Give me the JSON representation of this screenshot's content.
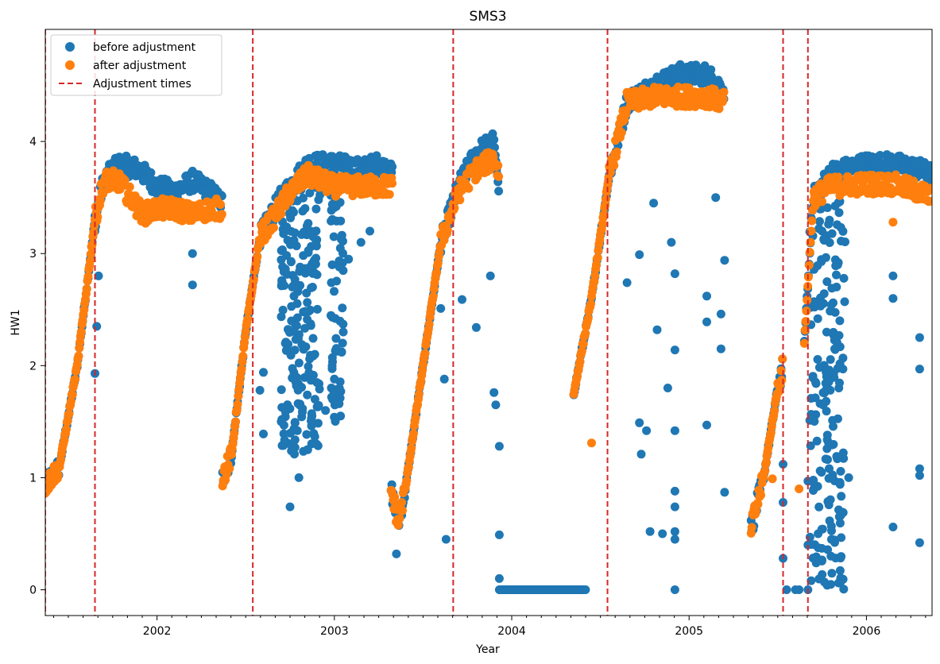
{
  "chart_data": {
    "type": "scatter",
    "title": "SMS3",
    "xlabel": "Year",
    "ylabel": "HW1",
    "xlim": [
      2001.37,
      2006.37
    ],
    "ylim": [
      -0.23,
      5.0
    ],
    "x_ticks": [
      2002,
      2003,
      2004,
      2005,
      2006
    ],
    "y_ticks": [
      0,
      1,
      2,
      3,
      4
    ],
    "legend": {
      "position": "upper-left"
    },
    "grid": false,
    "series": [
      {
        "name": "before adjustment",
        "type": "scatter",
        "color": "#1f77b4",
        "segments": [
          [
            [
              2001.37,
              0.93
            ],
            [
              2001.45,
              1.1
            ],
            [
              2001.55,
              2.0
            ],
            [
              2001.65,
              3.3
            ],
            [
              2001.7,
              3.65
            ],
            [
              2001.78,
              3.8
            ],
            [
              2001.9,
              3.75
            ],
            [
              2002.0,
              3.6
            ],
            [
              2002.1,
              3.55
            ],
            [
              2002.2,
              3.65
            ],
            [
              2002.3,
              3.55
            ],
            [
              2002.37,
              3.45
            ]
          ],
          [
            [
              2002.37,
              1.0
            ],
            [
              2002.42,
              1.2
            ],
            [
              2002.5,
              2.3
            ],
            [
              2002.58,
              3.15
            ],
            [
              2002.7,
              3.5
            ],
            [
              2002.85,
              3.8
            ],
            [
              2003.0,
              3.8
            ],
            [
              2003.15,
              3.75
            ],
            [
              2003.25,
              3.8
            ],
            [
              2003.33,
              3.7
            ]
          ],
          [
            [
              2003.32,
              0.9
            ],
            [
              2003.36,
              0.6
            ],
            [
              2003.4,
              0.9
            ],
            [
              2003.5,
              2.0
            ],
            [
              2003.6,
              3.1
            ],
            [
              2003.7,
              3.6
            ],
            [
              2003.8,
              3.9
            ],
            [
              2003.9,
              4.0
            ],
            [
              2003.93,
              3.5
            ]
          ],
          [
            [
              2004.35,
              1.75
            ],
            [
              2004.45,
              2.6
            ],
            [
              2004.55,
              3.7
            ],
            [
              2004.65,
              4.35
            ],
            [
              2004.8,
              4.5
            ],
            [
              2004.95,
              4.6
            ],
            [
              2005.1,
              4.6
            ],
            [
              2005.2,
              4.45
            ]
          ],
          [
            [
              2005.35,
              0.55
            ],
            [
              2005.42,
              1.0
            ],
            [
              2005.5,
              1.8
            ],
            [
              2005.53,
              2.0
            ]
          ],
          [
            [
              2005.65,
              2.2
            ],
            [
              2005.7,
              3.5
            ],
            [
              2005.8,
              3.72
            ],
            [
              2006.0,
              3.8
            ],
            [
              2006.15,
              3.8
            ],
            [
              2006.3,
              3.75
            ],
            [
              2006.37,
              3.7
            ]
          ]
        ],
        "outliers": [
          [
            2001.65,
            1.93
          ],
          [
            2001.66,
            2.35
          ],
          [
            2001.67,
            2.8
          ],
          [
            2001.65,
            3.2
          ],
          [
            2002.2,
            2.72
          ],
          [
            2002.2,
            3.0
          ],
          [
            2002.6,
            1.39
          ],
          [
            2002.58,
            1.78
          ],
          [
            2002.6,
            1.94
          ],
          [
            2002.7,
            1.5
          ],
          [
            2002.75,
            0.74
          ],
          [
            2002.8,
            1.0
          ],
          [
            2002.85,
            1.25
          ],
          [
            2002.9,
            1.3
          ],
          [
            2002.95,
            1.6
          ],
          [
            2003.0,
            1.88
          ],
          [
            2003.05,
            2.3
          ],
          [
            2003.08,
            2.95
          ],
          [
            2003.15,
            3.1
          ],
          [
            2003.2,
            3.2
          ],
          [
            2003.35,
            0.32
          ],
          [
            2003.6,
            2.51
          ],
          [
            2003.62,
            1.88
          ],
          [
            2003.63,
            0.45
          ],
          [
            2003.72,
            2.59
          ],
          [
            2003.8,
            2.34
          ],
          [
            2003.88,
            2.8
          ],
          [
            2003.9,
            1.76
          ],
          [
            2003.91,
            1.65
          ],
          [
            2003.93,
            1.28
          ],
          [
            2003.93,
            0.49
          ],
          [
            2003.93,
            0.1
          ],
          [
            2004.65,
            2.74
          ],
          [
            2004.72,
            2.99
          ],
          [
            2004.72,
            1.49
          ],
          [
            2004.73,
            1.21
          ],
          [
            2004.76,
            1.42
          ],
          [
            2004.78,
            0.52
          ],
          [
            2004.8,
            3.45
          ],
          [
            2004.82,
            2.32
          ],
          [
            2004.85,
            0.5
          ],
          [
            2004.88,
            1.8
          ],
          [
            2004.9,
            3.1
          ],
          [
            2004.92,
            2.82
          ],
          [
            2004.92,
            2.14
          ],
          [
            2004.92,
            1.42
          ],
          [
            2004.92,
            0.88
          ],
          [
            2004.92,
            0.74
          ],
          [
            2004.92,
            0.52
          ],
          [
            2004.92,
            0.45
          ],
          [
            2004.92,
            0.0
          ],
          [
            2005.1,
            2.39
          ],
          [
            2005.1,
            2.62
          ],
          [
            2005.1,
            1.47
          ],
          [
            2005.15,
            3.5
          ],
          [
            2005.18,
            2.46
          ],
          [
            2005.18,
            2.15
          ],
          [
            2005.2,
            2.94
          ],
          [
            2005.2,
            0.87
          ],
          [
            2005.53,
            1.12
          ],
          [
            2005.53,
            0.78
          ],
          [
            2005.53,
            0.28
          ],
          [
            2005.55,
            0.0
          ],
          [
            2005.6,
            0.0
          ],
          [
            2005.62,
            0.0
          ],
          [
            2005.67,
            0.97
          ],
          [
            2005.67,
            0.4
          ],
          [
            2005.67,
            0.0
          ],
          [
            2005.75,
            3.2
          ],
          [
            2005.8,
            0.3
          ],
          [
            2005.85,
            2.4
          ],
          [
            2005.9,
            1.0
          ],
          [
            2006.15,
            2.8
          ],
          [
            2006.15,
            2.6
          ],
          [
            2006.15,
            0.56
          ],
          [
            2006.3,
            2.25
          ],
          [
            2006.3,
            1.97
          ],
          [
            2006.3,
            1.08
          ],
          [
            2006.3,
            1.02
          ],
          [
            2006.3,
            0.42
          ]
        ],
        "zero_run": [
          2003.93,
          2004.42
        ],
        "dropout_bands": [
          {
            "x": [
              2002.7,
              2002.92
            ],
            "y": [
              1.2,
              3.6
            ]
          },
          {
            "x": [
              2002.98,
              2003.05
            ],
            "y": [
              1.4,
              3.7
            ]
          },
          {
            "x": [
              2005.68,
              2005.88
            ],
            "y": [
              0.0,
              3.5
            ]
          }
        ]
      },
      {
        "name": "after adjustment",
        "type": "scatter",
        "color": "#ff7f0e",
        "segments": [
          [
            [
              2001.37,
              0.93
            ],
            [
              2001.45,
              1.1
            ],
            [
              2001.55,
              2.0
            ],
            [
              2001.65,
              3.3
            ],
            [
              2001.7,
              3.65
            ],
            [
              2001.78,
              3.65
            ],
            [
              2001.85,
              3.5
            ],
            [
              2001.92,
              3.35
            ],
            [
              2002.0,
              3.4
            ],
            [
              2002.1,
              3.4
            ],
            [
              2002.2,
              3.35
            ],
            [
              2002.3,
              3.4
            ],
            [
              2002.37,
              3.4
            ]
          ],
          [
            [
              2002.37,
              1.0
            ],
            [
              2002.42,
              1.2
            ],
            [
              2002.5,
              2.3
            ],
            [
              2002.58,
              3.15
            ],
            [
              2002.65,
              3.3
            ],
            [
              2002.75,
              3.55
            ],
            [
              2002.85,
              3.7
            ],
            [
              2003.0,
              3.6
            ],
            [
              2003.15,
              3.6
            ],
            [
              2003.25,
              3.6
            ],
            [
              2003.33,
              3.6
            ]
          ],
          [
            [
              2003.32,
              0.9
            ],
            [
              2003.36,
              0.6
            ],
            [
              2003.4,
              0.9
            ],
            [
              2003.5,
              2.0
            ],
            [
              2003.6,
              3.1
            ],
            [
              2003.7,
              3.55
            ],
            [
              2003.8,
              3.75
            ],
            [
              2003.9,
              3.85
            ],
            [
              2003.93,
              3.7
            ]
          ],
          [
            [
              2004.35,
              1.75
            ],
            [
              2004.45,
              2.6
            ],
            [
              2004.55,
              3.7
            ],
            [
              2004.65,
              4.35
            ],
            [
              2004.8,
              4.4
            ],
            [
              2004.95,
              4.4
            ],
            [
              2005.1,
              4.4
            ],
            [
              2005.2,
              4.35
            ]
          ],
          [
            [
              2005.35,
              0.55
            ],
            [
              2005.42,
              1.0
            ],
            [
              2005.5,
              1.8
            ],
            [
              2005.53,
              2.0
            ]
          ],
          [
            [
              2005.65,
              2.2
            ],
            [
              2005.7,
              3.5
            ],
            [
              2005.8,
              3.6
            ],
            [
              2006.0,
              3.62
            ],
            [
              2006.15,
              3.62
            ],
            [
              2006.3,
              3.55
            ],
            [
              2006.37,
              3.5
            ]
          ]
        ],
        "outliers": [
          [
            2004.45,
            1.31
          ],
          [
            2005.47,
            0.99
          ],
          [
            2005.62,
            0.9
          ],
          [
            2006.15,
            3.28
          ]
        ]
      },
      {
        "name": "Adjustment times",
        "type": "vline",
        "color": "#d62728",
        "style": "dashed",
        "x": [
          2001.37,
          2001.65,
          2002.54,
          2003.67,
          2004.54,
          2005.53,
          2005.67
        ]
      }
    ]
  }
}
